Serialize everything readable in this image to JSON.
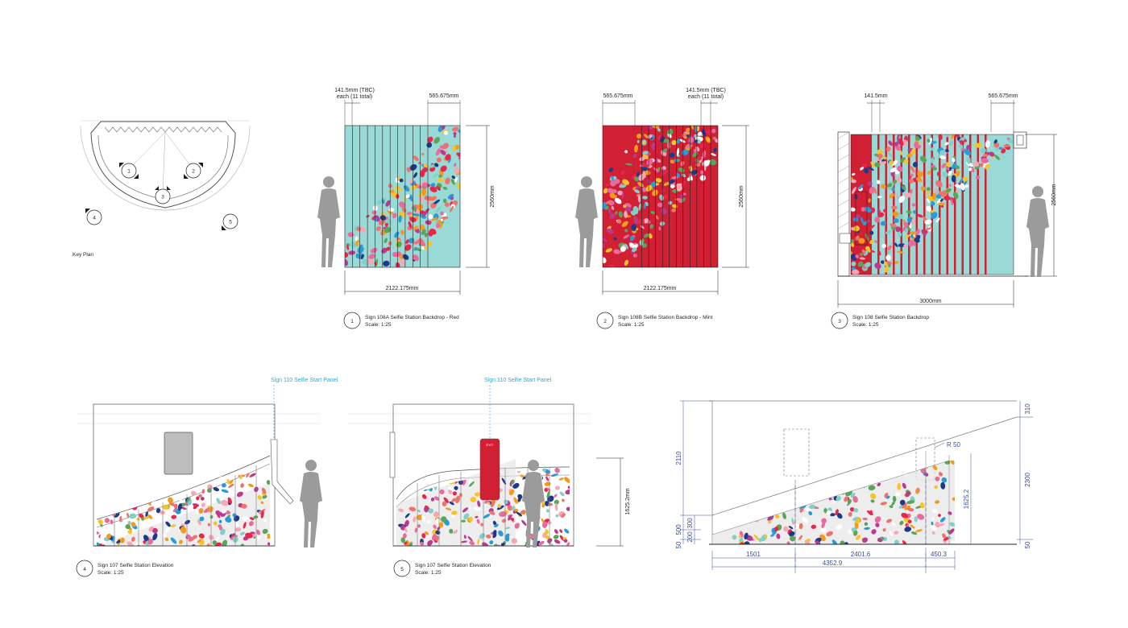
{
  "colors": {
    "mint": "#99d9d6",
    "red": "#d11f34",
    "ink": "#231f20",
    "line": "#555555",
    "person": "#9b9b9b",
    "callout": "#29a8d8",
    "dim_blue": "#3a4e98",
    "confetti": [
      "#e8254a",
      "#f39a1d",
      "#1d3a8a",
      "#7fd0c8",
      "#f6c428",
      "#e96a9c",
      "#ffffff",
      "#5aa55a",
      "#f0726c",
      "#f7a6b6",
      "#2a9bd6",
      "#b93b8f"
    ]
  },
  "key_plan": {
    "label": "Key Plan",
    "markers": [
      "1",
      "2",
      "3",
      "4",
      "5"
    ]
  },
  "drawing_1": {
    "num": "1",
    "title": "Sign 108A Selfie Station Backdrop - Red",
    "scale": "Scale: 1:25",
    "dim_strip_line1": "141.5mm (TBC)",
    "dim_strip_line2": "each (11 total)",
    "dim_panel": "565.675mm",
    "dim_height": "2560mm",
    "dim_width": "2122.175mm"
  },
  "drawing_2": {
    "num": "2",
    "title": "Sign 108B Selfie Station Backdrop - Mint",
    "scale": "Scale: 1:25",
    "dim_panel": "565.675mm",
    "dim_strip_line1": "141.5mm (TBC)",
    "dim_strip_line2": "each (11 total)",
    "dim_height": "2560mm",
    "dim_width": "2122.175mm"
  },
  "drawing_3": {
    "num": "3",
    "title": "Sign 108 Selfie Station Backdrop",
    "scale": "Scale: 1:25",
    "dim_strip": "141.5mm",
    "dim_panel": "565.675mm",
    "dim_height": "2560mm",
    "dim_width": "3000mm"
  },
  "drawing_4": {
    "num": "4",
    "title": "Sign 107 Selfie Station Elevation",
    "scale": "Scale: 1:25",
    "callout": "Sign 110 Selfie Start Panel"
  },
  "drawing_5": {
    "num": "5",
    "title": "Sign 107 Selfie Station Elevation",
    "scale": "Scale: 1:25",
    "callout": "Sign 110 Selfie Start Panel",
    "dim_height": "1625.2mm",
    "panel_label": "EXIT"
  },
  "drawing_6": {
    "dims": {
      "d2110": "2110",
      "d310": "310",
      "d2300": "2300",
      "d500": "500",
      "d300": "300",
      "d200": "200",
      "d50a": "50",
      "d50b": "50",
      "r50": "R 50",
      "d1625": "1625.2",
      "d1501": "1501",
      "d2401": "2401.6",
      "d450": "450.3",
      "d4352": "4352.9"
    }
  }
}
